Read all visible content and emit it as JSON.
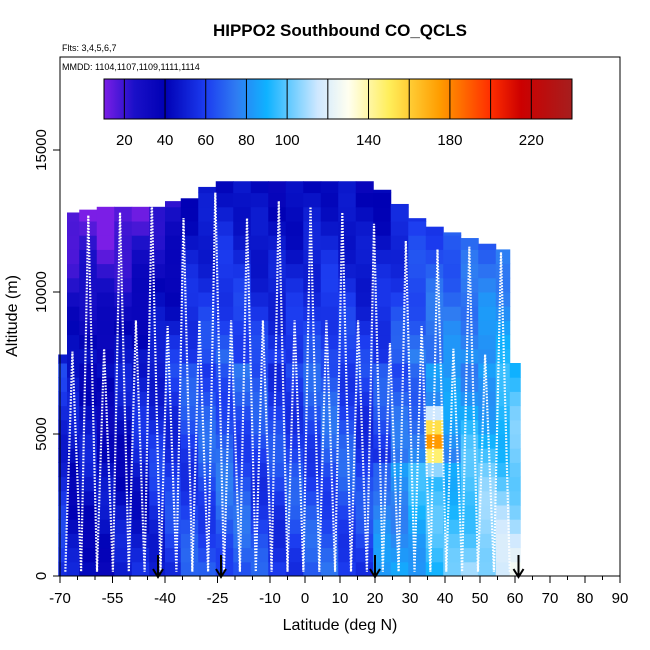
{
  "chart_data": {
    "type": "heatmap",
    "title": "HIPPO2 Southbound CO_QCLS",
    "subtitle_flights": "Flts: 3,4,5,6,7",
    "subtitle_dates": "MMDD: 1104,1107,1109,1111,1114",
    "xlabel": "Latitude (deg N)",
    "ylabel": "Altitude (m)",
    "xlim": [
      -70,
      90
    ],
    "ylim": [
      0,
      17500
    ],
    "x_ticks": [
      -70,
      -55,
      -40,
      -25,
      -10,
      0,
      10,
      20,
      30,
      40,
      50,
      60,
      70,
      80,
      90
    ],
    "x_tick_labels": [
      "-70",
      "-55",
      "-40",
      "-25",
      "-10",
      "0",
      "10",
      "20",
      "30",
      "40",
      "50",
      "60",
      "70",
      "80",
      "90"
    ],
    "x_minor_ticks": [
      -65,
      -60,
      -50,
      -45,
      -35,
      -30,
      -20,
      -15,
      -5,
      5,
      15,
      25,
      35,
      45,
      55,
      65,
      75,
      85
    ],
    "y_ticks": [
      0,
      5000,
      10000,
      15000
    ],
    "y_tick_labels": [
      "0",
      "5000",
      "10000",
      "15000"
    ],
    "colorbar": {
      "range": [
        10,
        240
      ],
      "ticks": [
        20,
        40,
        60,
        80,
        100,
        140,
        180,
        220
      ],
      "tick_labels": [
        "20",
        "40",
        "60",
        "80",
        "100",
        "140",
        "180",
        "220"
      ],
      "separators": [
        20,
        40,
        60,
        80,
        100,
        120,
        140,
        160,
        180,
        200,
        220
      ],
      "stops": [
        {
          "v": 10,
          "c": "#7b1ee6"
        },
        {
          "v": 25,
          "c": "#1a10c8"
        },
        {
          "v": 40,
          "c": "#0000b4"
        },
        {
          "v": 60,
          "c": "#1c3cf0"
        },
        {
          "v": 75,
          "c": "#2f7cf2"
        },
        {
          "v": 90,
          "c": "#0fb2ff"
        },
        {
          "v": 115,
          "c": "#cfe8ff"
        },
        {
          "v": 130,
          "c": "#fffff0"
        },
        {
          "v": 150,
          "c": "#ffee5a"
        },
        {
          "v": 175,
          "c": "#ff9d00"
        },
        {
          "v": 200,
          "c": "#ff2e00"
        },
        {
          "v": 215,
          "c": "#cc0000"
        },
        {
          "v": 240,
          "c": "#a61e1e"
        }
      ]
    },
    "curtain_columns": [
      {
        "lat": -69,
        "top": 7800,
        "base": 55
      },
      {
        "lat": -67,
        "top": 12800,
        "base": 45
      },
      {
        "lat": -62,
        "top": 12900,
        "base": 45
      },
      {
        "lat": -57,
        "top": 13000,
        "base": 42
      },
      {
        "lat": -52,
        "top": 13000,
        "base": 45
      },
      {
        "lat": -47,
        "top": 13000,
        "base": 50
      },
      {
        "lat": -42,
        "top": 13000,
        "base": 55
      },
      {
        "lat": -38,
        "top": 13200,
        "base": 58
      },
      {
        "lat": -33,
        "top": 13300,
        "base": 62
      },
      {
        "lat": -28,
        "top": 13700,
        "base": 65
      },
      {
        "lat": -23,
        "top": 13900,
        "base": 68
      },
      {
        "lat": -18,
        "top": 13900,
        "base": 66
      },
      {
        "lat": -13,
        "top": 13900,
        "base": 62
      },
      {
        "lat": -8,
        "top": 13900,
        "base": 60
      },
      {
        "lat": -3,
        "top": 13900,
        "base": 62
      },
      {
        "lat": 2,
        "top": 13900,
        "base": 64
      },
      {
        "lat": 7,
        "top": 13900,
        "base": 66
      },
      {
        "lat": 12,
        "top": 13900,
        "base": 64
      },
      {
        "lat": 17,
        "top": 13900,
        "base": 60
      },
      {
        "lat": 22,
        "top": 13600,
        "base": 62
      },
      {
        "lat": 27,
        "top": 13100,
        "base": 68
      },
      {
        "lat": 32,
        "top": 12600,
        "base": 74
      },
      {
        "lat": 37,
        "top": 12300,
        "base": 78
      },
      {
        "lat": 42,
        "top": 12100,
        "base": 80
      },
      {
        "lat": 47,
        "top": 11900,
        "base": 82
      },
      {
        "lat": 52,
        "top": 11700,
        "base": 85
      },
      {
        "lat": 57,
        "top": 11500,
        "base": 88
      },
      {
        "lat": 60,
        "top": 7500,
        "base": 92
      }
    ],
    "hotspot": {
      "lat": 36,
      "alt": 4800,
      "value": 200
    },
    "profile_tops": [
      7900,
      12700,
      8000,
      12800,
      9000,
      13200,
      8800,
      12600,
      9000,
      13500,
      9000,
      12600,
      9000,
      13200,
      9000,
      13000,
      9000,
      12800,
      9000,
      12400,
      8200,
      11800,
      8800,
      11500,
      8000,
      11600,
      7800,
      11400
    ],
    "arrows_lat": [
      -42,
      -24,
      20,
      61
    ]
  }
}
